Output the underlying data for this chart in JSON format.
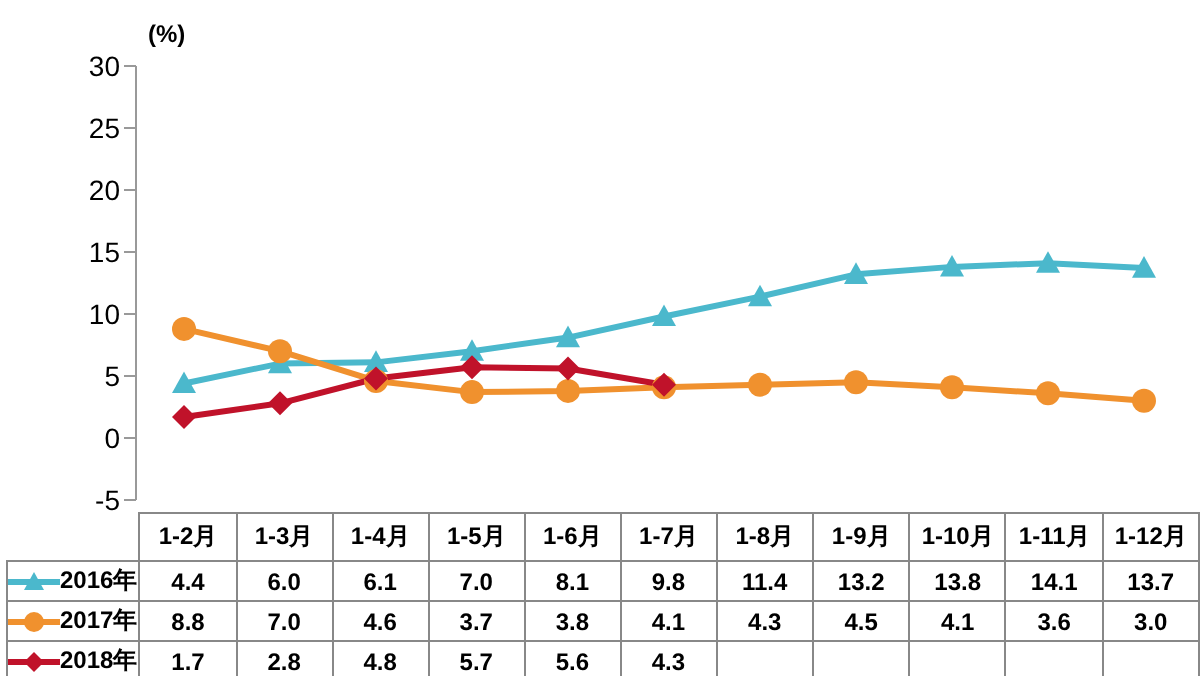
{
  "chart_data": {
    "type": "line",
    "ylabel": "(%)",
    "categories": [
      "1-2月",
      "1-3月",
      "1-4月",
      "1-5月",
      "1-6月",
      "1-7月",
      "1-8月",
      "1-9月",
      "1-10月",
      "1-11月",
      "1-12月"
    ],
    "series": [
      {
        "name": "2016年",
        "color": "#4bb8cc",
        "marker": "triangle",
        "values": [
          4.4,
          6.0,
          6.1,
          7.0,
          8.1,
          9.8,
          11.4,
          13.2,
          13.8,
          14.1,
          13.7
        ],
        "value_labels": [
          "4.4",
          "6.0",
          "6.1",
          "7.0",
          "8.1",
          "9.8",
          "11.4",
          "13.2",
          "13.8",
          "14.1",
          "13.7"
        ]
      },
      {
        "name": "2017年",
        "color": "#f0912e",
        "marker": "circle",
        "values": [
          8.8,
          7.0,
          4.6,
          3.7,
          3.8,
          4.1,
          4.3,
          4.5,
          4.1,
          3.6,
          3.0
        ],
        "value_labels": [
          "8.8",
          "7.0",
          "4.6",
          "3.7",
          "3.8",
          "4.1",
          "4.3",
          "4.5",
          "4.1",
          "3.6",
          "3.0"
        ]
      },
      {
        "name": "2018年",
        "color": "#c0122a",
        "marker": "diamond",
        "values": [
          1.7,
          2.8,
          4.8,
          5.7,
          5.6,
          4.3,
          null,
          null,
          null,
          null,
          null
        ],
        "value_labels": [
          "1.7",
          "2.8",
          "4.8",
          "5.7",
          "5.6",
          "4.3",
          null,
          null,
          null,
          null,
          null
        ]
      }
    ],
    "ylim": [
      -5,
      30
    ],
    "yticks": [
      -5,
      0,
      5,
      10,
      15,
      20,
      25,
      30
    ],
    "legend": "bottom",
    "grid": false
  }
}
